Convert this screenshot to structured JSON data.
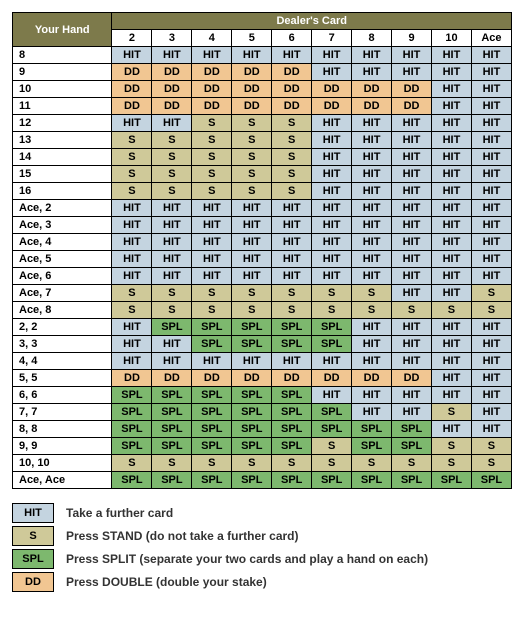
{
  "headers": {
    "your_hand": "Your Hand",
    "dealers_card": "Dealer's Card",
    "cols": [
      "2",
      "3",
      "4",
      "5",
      "6",
      "7",
      "8",
      "9",
      "10",
      "Ace"
    ]
  },
  "actions": {
    "HIT": {
      "label": "HIT",
      "bg": "#c4d4e0"
    },
    "S": {
      "label": "S",
      "bg": "#cfc999"
    },
    "DD": {
      "label": "DD",
      "bg": "#f1c692"
    },
    "SPL": {
      "label": "SPL",
      "bg": "#7db86e"
    }
  },
  "rows": [
    {
      "hand": "8",
      "cells": [
        "HIT",
        "HIT",
        "HIT",
        "HIT",
        "HIT",
        "HIT",
        "HIT",
        "HIT",
        "HIT",
        "HIT"
      ]
    },
    {
      "hand": "9",
      "cells": [
        "DD",
        "DD",
        "DD",
        "DD",
        "DD",
        "HIT",
        "HIT",
        "HIT",
        "HIT",
        "HIT"
      ]
    },
    {
      "hand": "10",
      "cells": [
        "DD",
        "DD",
        "DD",
        "DD",
        "DD",
        "DD",
        "DD",
        "DD",
        "HIT",
        "HIT"
      ]
    },
    {
      "hand": "11",
      "cells": [
        "DD",
        "DD",
        "DD",
        "DD",
        "DD",
        "DD",
        "DD",
        "DD",
        "HIT",
        "HIT"
      ]
    },
    {
      "hand": "12",
      "cells": [
        "HIT",
        "HIT",
        "S",
        "S",
        "S",
        "HIT",
        "HIT",
        "HIT",
        "HIT",
        "HIT"
      ]
    },
    {
      "hand": "13",
      "cells": [
        "S",
        "S",
        "S",
        "S",
        "S",
        "HIT",
        "HIT",
        "HIT",
        "HIT",
        "HIT"
      ]
    },
    {
      "hand": "14",
      "cells": [
        "S",
        "S",
        "S",
        "S",
        "S",
        "HIT",
        "HIT",
        "HIT",
        "HIT",
        "HIT"
      ]
    },
    {
      "hand": "15",
      "cells": [
        "S",
        "S",
        "S",
        "S",
        "S",
        "HIT",
        "HIT",
        "HIT",
        "HIT",
        "HIT"
      ]
    },
    {
      "hand": "16",
      "cells": [
        "S",
        "S",
        "S",
        "S",
        "S",
        "HIT",
        "HIT",
        "HIT",
        "HIT",
        "HIT"
      ]
    },
    {
      "hand": "Ace, 2",
      "cells": [
        "HIT",
        "HIT",
        "HIT",
        "HIT",
        "HIT",
        "HIT",
        "HIT",
        "HIT",
        "HIT",
        "HIT"
      ]
    },
    {
      "hand": "Ace, 3",
      "cells": [
        "HIT",
        "HIT",
        "HIT",
        "HIT",
        "HIT",
        "HIT",
        "HIT",
        "HIT",
        "HIT",
        "HIT"
      ]
    },
    {
      "hand": "Ace, 4",
      "cells": [
        "HIT",
        "HIT",
        "HIT",
        "HIT",
        "HIT",
        "HIT",
        "HIT",
        "HIT",
        "HIT",
        "HIT"
      ]
    },
    {
      "hand": "Ace, 5",
      "cells": [
        "HIT",
        "HIT",
        "HIT",
        "HIT",
        "HIT",
        "HIT",
        "HIT",
        "HIT",
        "HIT",
        "HIT"
      ]
    },
    {
      "hand": "Ace, 6",
      "cells": [
        "HIT",
        "HIT",
        "HIT",
        "HIT",
        "HIT",
        "HIT",
        "HIT",
        "HIT",
        "HIT",
        "HIT"
      ]
    },
    {
      "hand": "Ace, 7",
      "cells": [
        "S",
        "S",
        "S",
        "S",
        "S",
        "S",
        "S",
        "HIT",
        "HIT",
        "S"
      ]
    },
    {
      "hand": "Ace, 8",
      "cells": [
        "S",
        "S",
        "S",
        "S",
        "S",
        "S",
        "S",
        "S",
        "S",
        "S"
      ]
    },
    {
      "hand": "2, 2",
      "cells": [
        "HIT",
        "SPL",
        "SPL",
        "SPL",
        "SPL",
        "SPL",
        "HIT",
        "HIT",
        "HIT",
        "HIT"
      ]
    },
    {
      "hand": "3, 3",
      "cells": [
        "HIT",
        "HIT",
        "SPL",
        "SPL",
        "SPL",
        "SPL",
        "HIT",
        "HIT",
        "HIT",
        "HIT"
      ]
    },
    {
      "hand": "4, 4",
      "cells": [
        "HIT",
        "HIT",
        "HIT",
        "HIT",
        "HIT",
        "HIT",
        "HIT",
        "HIT",
        "HIT",
        "HIT"
      ]
    },
    {
      "hand": "5, 5",
      "cells": [
        "DD",
        "DD",
        "DD",
        "DD",
        "DD",
        "DD",
        "DD",
        "DD",
        "HIT",
        "HIT"
      ]
    },
    {
      "hand": "6, 6",
      "cells": [
        "SPL",
        "SPL",
        "SPL",
        "SPL",
        "SPL",
        "HIT",
        "HIT",
        "HIT",
        "HIT",
        "HIT"
      ]
    },
    {
      "hand": "7, 7",
      "cells": [
        "SPL",
        "SPL",
        "SPL",
        "SPL",
        "SPL",
        "SPL",
        "HIT",
        "HIT",
        "S",
        "HIT"
      ]
    },
    {
      "hand": "8, 8",
      "cells": [
        "SPL",
        "SPL",
        "SPL",
        "SPL",
        "SPL",
        "SPL",
        "SPL",
        "SPL",
        "HIT",
        "HIT"
      ]
    },
    {
      "hand": "9, 9",
      "cells": [
        "SPL",
        "SPL",
        "SPL",
        "SPL",
        "SPL",
        "S",
        "SPL",
        "SPL",
        "S",
        "S"
      ]
    },
    {
      "hand": "10, 10",
      "cells": [
        "S",
        "S",
        "S",
        "S",
        "S",
        "S",
        "S",
        "S",
        "S",
        "S"
      ]
    },
    {
      "hand": "Ace, Ace",
      "cells": [
        "SPL",
        "SPL",
        "SPL",
        "SPL",
        "SPL",
        "SPL",
        "SPL",
        "SPL",
        "SPL",
        "SPL"
      ]
    }
  ],
  "legend": [
    {
      "code": "HIT",
      "text": "Take a further card"
    },
    {
      "code": "S",
      "text": "Press STAND (do not take a further card)"
    },
    {
      "code": "SPL",
      "text": "Press SPLIT (separate your two cards and play a hand on each)"
    },
    {
      "code": "DD",
      "text": "Press DOUBLE (double your stake)"
    }
  ],
  "colors": {
    "header_bg": "#7d7a4b",
    "header_fg": "#ffffff",
    "border": "#000000"
  }
}
